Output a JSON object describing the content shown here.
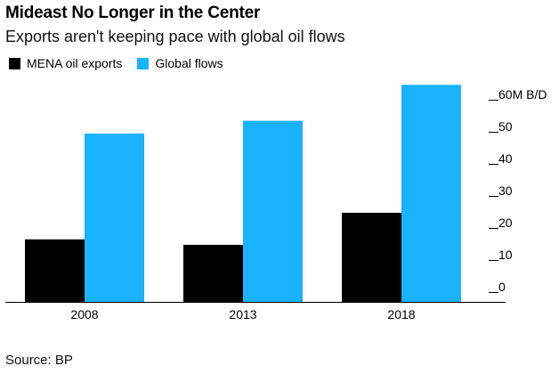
{
  "chart_data": {
    "type": "bar",
    "title": "Mideast No Longer in the Center",
    "subtitle": "Exports aren't keeping pace with global oil flows",
    "categories": [
      "2008",
      "2013",
      "2018"
    ],
    "series": [
      {
        "name": "MENA oil exports",
        "values": [
          19.5,
          17.8,
          27.8
        ],
        "color": "#000000"
      },
      {
        "name": "Global flows",
        "values": [
          52.5,
          56.5,
          67.7
        ],
        "color": "#1ab3ff"
      }
    ],
    "ylim": [
      0,
      70
    ],
    "yticks": [
      0,
      10,
      20,
      30,
      40,
      50,
      60
    ],
    "ytick_labels": [
      "0",
      "10",
      "20",
      "30",
      "40",
      "50",
      "60M B/D"
    ],
    "xlabel": "",
    "ylabel": "",
    "legend_position": "top-left",
    "source": "Source: BP"
  }
}
